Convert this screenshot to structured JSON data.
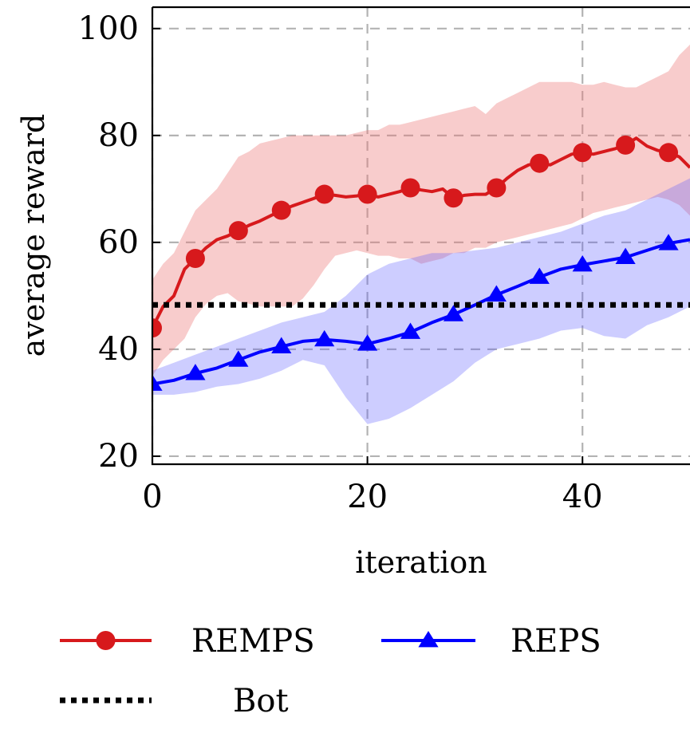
{
  "chart_data": {
    "type": "line",
    "xlabel": "iteration",
    "ylabel": "average reward",
    "xlim": [
      0,
      50
    ],
    "ylim": [
      18.5,
      104
    ],
    "xticks": [
      "0",
      "20",
      "40"
    ],
    "yticks": [
      "20",
      "40",
      "60",
      "80",
      "100"
    ],
    "grid": true,
    "legend_position": "bottom",
    "series": [
      {
        "name": "REMPS",
        "color": "#d7191c",
        "marker": "circle",
        "x": [
          0,
          1,
          2,
          3,
          4,
          5,
          6,
          7,
          8,
          9,
          10,
          11,
          12,
          13,
          14,
          15,
          16,
          17,
          18,
          19,
          20,
          21,
          22,
          23,
          24,
          25,
          26,
          27,
          28,
          29,
          30,
          31,
          32,
          33,
          34,
          35,
          36,
          37,
          38,
          39,
          40,
          41,
          42,
          43,
          44,
          45,
          46,
          47,
          48,
          49,
          50
        ],
        "y": [
          44,
          48,
          50,
          55,
          57,
          59,
          60.5,
          61.2,
          62.2,
          63.2,
          64,
          65,
          66,
          66.8,
          67.5,
          68.2,
          69,
          68.8,
          68.5,
          68.7,
          69,
          68.5,
          69,
          69.5,
          70.2,
          69.8,
          69.5,
          70,
          68.3,
          68.8,
          69,
          69,
          70.2,
          72,
          73.5,
          74.5,
          74.8,
          74.5,
          75.5,
          76.5,
          76.8,
          76.5,
          77,
          77.5,
          78.2,
          79.5,
          78,
          77.2,
          76.8,
          76,
          74
        ],
        "band_upper": [
          53,
          56,
          58,
          62,
          66,
          68,
          70,
          73,
          76,
          77,
          78.5,
          79,
          79.5,
          80,
          80,
          80,
          80,
          80,
          80,
          80.5,
          81,
          81,
          82,
          82,
          82.5,
          83,
          83.5,
          84,
          84.5,
          85,
          85.5,
          84,
          86,
          87,
          88,
          89,
          90,
          90,
          90,
          90,
          89.5,
          89.5,
          90,
          89.5,
          89,
          89,
          90,
          91,
          92,
          95,
          97
        ],
        "band_lower": [
          35,
          38,
          40,
          42,
          46,
          48.5,
          50,
          50.5,
          49,
          48.5,
          48,
          48,
          48,
          48,
          49.5,
          52,
          55,
          57.5,
          58,
          58.5,
          58,
          57.5,
          57.5,
          57,
          57,
          56,
          56.5,
          57,
          58,
          58,
          59,
          59,
          60,
          60.5,
          61,
          61.5,
          62,
          62.5,
          63,
          63.5,
          64.5,
          65.5,
          66,
          66.5,
          67,
          67.5,
          68,
          68.5,
          68,
          67,
          65
        ]
      },
      {
        "name": "REPS",
        "color": "#0000ff",
        "marker": "triangle",
        "x": [
          0,
          2,
          4,
          6,
          8,
          10,
          12,
          14,
          16,
          18,
          20,
          22,
          24,
          26,
          28,
          30,
          32,
          34,
          36,
          38,
          40,
          42,
          44,
          46,
          48,
          50
        ],
        "y": [
          33.5,
          34.2,
          35.5,
          36.5,
          38,
          39.5,
          40.5,
          41.5,
          41.8,
          41.5,
          41,
          42,
          43.2,
          45,
          46.5,
          48.3,
          50.2,
          51.8,
          53.5,
          55,
          55.8,
          56.5,
          57.2,
          58.5,
          59.8,
          60.5
        ],
        "band_upper": [
          36,
          37.5,
          39,
          40.5,
          42,
          43.5,
          45,
          46,
          47,
          50,
          54,
          56,
          57,
          58,
          58,
          58.5,
          59,
          60,
          61,
          62,
          63.5,
          65,
          66,
          68,
          70,
          72
        ],
        "band_lower": [
          31.5,
          31.5,
          32,
          33,
          33.5,
          34.5,
          36,
          38,
          37,
          31,
          26,
          27,
          29,
          31.5,
          34,
          37.5,
          40,
          41,
          42,
          43.5,
          44,
          42.5,
          42,
          44.5,
          46,
          48
        ]
      },
      {
        "name": "Bot",
        "color": "#000000",
        "style": "dotted",
        "x": [
          0,
          50
        ],
        "y": [
          48.3,
          48.3
        ]
      }
    ]
  }
}
